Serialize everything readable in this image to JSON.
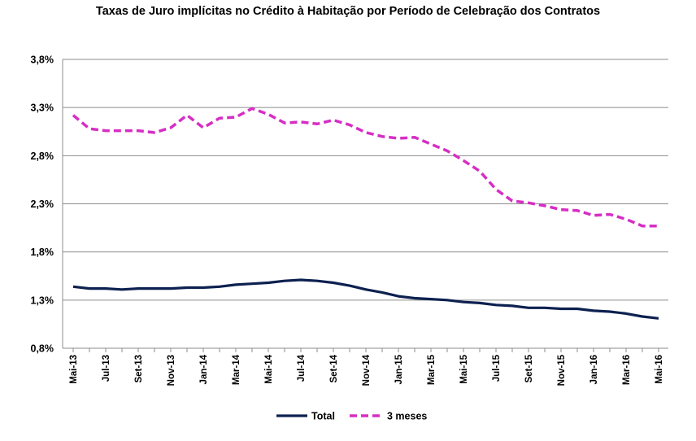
{
  "chart_data": {
    "type": "line",
    "title": "Taxas de Juro implícitas no Crédito à Habitação por Período de Celebração dos Contratos",
    "xlabel": "",
    "ylabel": "",
    "ylim": [
      0.8,
      3.8
    ],
    "yticks": [
      "0,8%",
      "1,3%",
      "1,8%",
      "2,3%",
      "2,8%",
      "3,3%",
      "3,8%"
    ],
    "grid": "horizontal",
    "legend_position": "bottom",
    "x": [
      "Mai-13",
      "Jun-13",
      "Jul-13",
      "Ago-13",
      "Set-13",
      "Out-13",
      "Nov-13",
      "Dez-13",
      "Jan-14",
      "Fev-14",
      "Mar-14",
      "Abr-14",
      "Mai-14",
      "Jun-14",
      "Jul-14",
      "Ago-14",
      "Set-14",
      "Out-14",
      "Nov-14",
      "Dez-14",
      "Jan-15",
      "Fev-15",
      "Mar-15",
      "Abr-15",
      "Mai-15",
      "Jun-15",
      "Jul-15",
      "Ago-15",
      "Set-15",
      "Out-15",
      "Nov-15",
      "Dez-15",
      "Jan-16",
      "Fev-16",
      "Mar-16",
      "Abr-16",
      "Mai-16"
    ],
    "xtick_labels": [
      "Mai-13",
      "Jul-13",
      "Set-13",
      "Nov-13",
      "Jan-14",
      "Mar-14",
      "Mai-14",
      "Jul-14",
      "Set-14",
      "Nov-14",
      "Jan-15",
      "Mar-15",
      "Mai-15",
      "Jul-15",
      "Set-15",
      "Nov-15",
      "Jan-16",
      "Mar-16",
      "Mai-16"
    ],
    "series": [
      {
        "name": "Total",
        "color": "#0d2150",
        "dash": "solid",
        "values": [
          1.44,
          1.42,
          1.42,
          1.41,
          1.42,
          1.42,
          1.42,
          1.43,
          1.43,
          1.44,
          1.46,
          1.47,
          1.48,
          1.5,
          1.51,
          1.5,
          1.48,
          1.45,
          1.41,
          1.38,
          1.34,
          1.32,
          1.31,
          1.3,
          1.28,
          1.27,
          1.25,
          1.24,
          1.22,
          1.22,
          1.21,
          1.21,
          1.19,
          1.18,
          1.16,
          1.13,
          1.11
        ]
      },
      {
        "name": "3 meses",
        "color": "#d62ec4",
        "dash": "dashed",
        "values": [
          3.22,
          3.08,
          3.06,
          3.06,
          3.06,
          3.04,
          3.09,
          3.22,
          3.09,
          3.19,
          3.2,
          3.29,
          3.23,
          3.14,
          3.15,
          3.13,
          3.17,
          3.12,
          3.04,
          3.0,
          2.98,
          2.99,
          2.92,
          2.85,
          2.75,
          2.64,
          2.45,
          2.33,
          2.31,
          2.28,
          2.24,
          2.23,
          2.18,
          2.19,
          2.14,
          2.07,
          2.07
        ]
      }
    ]
  }
}
